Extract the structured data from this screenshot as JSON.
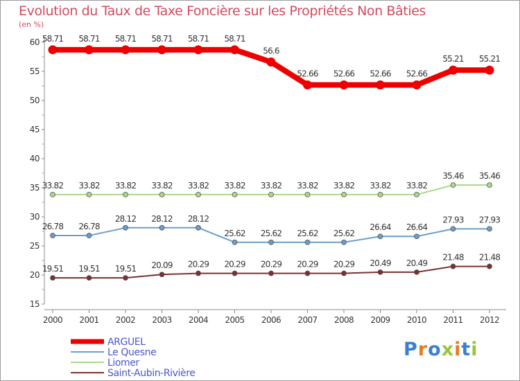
{
  "chart_data": {
    "type": "line",
    "title": "Evolution du Taux de Taxe Foncière sur les Propriétés Non Bâties",
    "subtitle": "(en %)",
    "x": [
      "2000",
      "2001",
      "2002",
      "2003",
      "2004",
      "2005",
      "2006",
      "2007",
      "2008",
      "2009",
      "2010",
      "2011",
      "2012"
    ],
    "ylim": [
      15,
      60
    ],
    "yticks": [
      15,
      20,
      25,
      30,
      35,
      40,
      45,
      50,
      55,
      60
    ],
    "series": [
      {
        "name": "ARGUEL",
        "color": "#ee0000",
        "values": [
          58.71,
          58.71,
          58.71,
          58.71,
          58.71,
          58.71,
          56.6,
          52.66,
          52.66,
          52.66,
          52.66,
          55.21,
          55.21
        ],
        "labels": [
          "58.71",
          "58.71",
          "58.71",
          "58.71",
          "58.71",
          "58.71",
          "56.6",
          "52.66",
          "52.66",
          "52.66",
          "52.66",
          "55.21",
          "55.21"
        ]
      },
      {
        "name": "Le Quesne",
        "color": "#6a9ec8",
        "values": [
          26.78,
          26.78,
          28.12,
          28.12,
          28.12,
          25.62,
          25.62,
          25.62,
          25.62,
          26.64,
          26.64,
          27.93,
          27.93
        ],
        "labels": [
          "26.78",
          "26.78",
          "28.12",
          "28.12",
          "28.12",
          "25.62",
          "25.62",
          "25.62",
          "25.62",
          "26.64",
          "26.64",
          "27.93",
          "27.93"
        ]
      },
      {
        "name": "Liomer",
        "color": "#a8d88a",
        "values": [
          33.82,
          33.82,
          33.82,
          33.82,
          33.82,
          33.82,
          33.82,
          33.82,
          33.82,
          33.82,
          33.82,
          35.46,
          35.46
        ],
        "labels": [
          "33.82",
          "33.82",
          "33.82",
          "33.82",
          "33.82",
          "33.82",
          "33.82",
          "33.82",
          "33.82",
          "33.82",
          "33.82",
          "35.46",
          "35.46"
        ]
      },
      {
        "name": "Saint-Aubin-Rivière",
        "color": "#7a3030",
        "values": [
          19.51,
          19.51,
          19.51,
          20.09,
          20.29,
          20.29,
          20.29,
          20.29,
          20.29,
          20.49,
          20.49,
          21.48,
          21.48
        ],
        "labels": [
          "19.51",
          "19.51",
          "19.51",
          "20.09",
          "20.29",
          "20.29",
          "20.29",
          "20.29",
          "20.29",
          "20.49",
          "20.49",
          "21.48",
          "21.48"
        ]
      }
    ],
    "legend_position": "bottom-left",
    "grid": false
  },
  "colors": {
    "title": "#d24a5e",
    "axis": "#888888",
    "legend_text": "#4a58c8"
  },
  "branding": {
    "logo": "Proxiti",
    "logo_colors": [
      "#3a7fd0",
      "#e87b1e",
      "#3a7fd0",
      "#9ac43a",
      "#e87b1e",
      "#3a7fd0",
      "#9ac43a"
    ]
  }
}
